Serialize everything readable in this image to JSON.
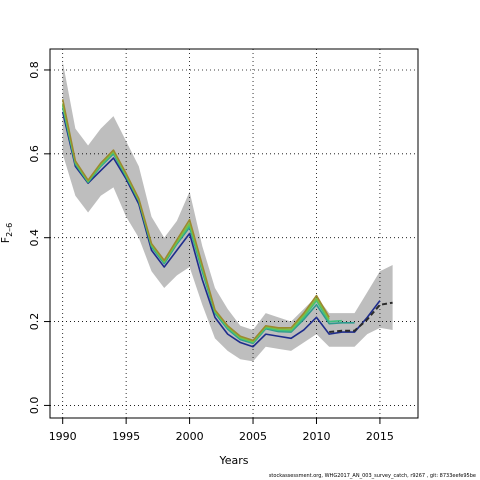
{
  "chart_data": {
    "type": "line",
    "title": "",
    "xlabel": "Years",
    "ylabel": "F",
    "ylabel_subscript": "2–6",
    "xlim": [
      1989,
      2018
    ],
    "ylim": [
      -0.03,
      0.85
    ],
    "x_ticks": [
      1990,
      1995,
      2000,
      2005,
      2010,
      2015
    ],
    "y_ticks": [
      0.0,
      0.2,
      0.4,
      0.6,
      0.8
    ],
    "y_tick_labels": [
      "0.0",
      "0.2",
      "0.4",
      "0.6",
      "0.8"
    ],
    "grid": "dotted",
    "band": {
      "color": "#bebebe",
      "x": [
        1990,
        1991,
        1992,
        1993,
        1994,
        1995,
        1996,
        1997,
        1998,
        1999,
        2000,
        2001,
        2002,
        2003,
        2004,
        2005,
        2006,
        2007,
        2008,
        2009,
        2010,
        2011,
        2012,
        2013,
        2014,
        2015,
        2016
      ],
      "upper": [
        0.82,
        0.66,
        0.62,
        0.66,
        0.69,
        0.63,
        0.57,
        0.45,
        0.4,
        0.44,
        0.51,
        0.38,
        0.28,
        0.23,
        0.19,
        0.18,
        0.22,
        0.21,
        0.2,
        0.23,
        0.26,
        0.22,
        0.22,
        0.22,
        0.27,
        0.32,
        0.335
      ],
      "lower": [
        0.6,
        0.5,
        0.46,
        0.5,
        0.52,
        0.45,
        0.4,
        0.32,
        0.28,
        0.31,
        0.33,
        0.24,
        0.16,
        0.13,
        0.11,
        0.105,
        0.14,
        0.135,
        0.13,
        0.15,
        0.17,
        0.14,
        0.14,
        0.14,
        0.17,
        0.185,
        0.18
      ]
    },
    "series": [
      {
        "color": "#1e2c8c",
        "x": [
          1990,
          1991,
          1992,
          1993,
          1994,
          1995,
          1996,
          1997,
          1998,
          1999,
          2000,
          2001,
          2002,
          2003,
          2004,
          2005,
          2006,
          2007,
          2008,
          2009,
          2010,
          2011,
          2012,
          2013,
          2014,
          2015
        ],
        "values": [
          0.7,
          0.57,
          0.53,
          0.56,
          0.59,
          0.54,
          0.48,
          0.37,
          0.33,
          0.37,
          0.41,
          0.3,
          0.21,
          0.17,
          0.15,
          0.14,
          0.17,
          0.165,
          0.16,
          0.18,
          0.21,
          0.17,
          0.175,
          0.175,
          0.21,
          0.25
        ]
      },
      {
        "color": "#2e9a8e",
        "x": [
          1990,
          1991,
          1992,
          1993,
          1994,
          1995,
          1996,
          1997,
          1998,
          1999,
          2000,
          2001,
          2002,
          2003,
          2004,
          2005,
          2006,
          2007,
          2008,
          2009,
          2010,
          2011,
          2012,
          2013
        ],
        "values": [
          0.71,
          0.575,
          0.532,
          0.57,
          0.6,
          0.545,
          0.487,
          0.378,
          0.338,
          0.385,
          0.425,
          0.32,
          0.22,
          0.182,
          0.157,
          0.148,
          0.183,
          0.176,
          0.175,
          0.205,
          0.24,
          0.195,
          0.197,
          0.197
        ]
      },
      {
        "color": "#3fbf7f",
        "x": [
          1990,
          1991,
          1992,
          1993,
          1994,
          1995,
          1996,
          1997,
          1998,
          1999,
          2000,
          2001,
          2002,
          2003,
          2004,
          2005,
          2006,
          2007,
          2008,
          2009,
          2010,
          2011,
          2012
        ],
        "values": [
          0.715,
          0.578,
          0.533,
          0.572,
          0.603,
          0.548,
          0.489,
          0.381,
          0.341,
          0.388,
          0.43,
          0.325,
          0.223,
          0.185,
          0.16,
          0.15,
          0.185,
          0.179,
          0.178,
          0.21,
          0.25,
          0.2,
          0.202
        ]
      },
      {
        "color": "#7ac043",
        "x": [
          1990,
          1991,
          1992,
          1993,
          1994,
          1995,
          1996,
          1997,
          1998,
          1999,
          2000,
          2001,
          2002,
          2003,
          2004,
          2005,
          2006,
          2007,
          2008,
          2009,
          2010,
          2011
        ],
        "values": [
          0.72,
          0.58,
          0.535,
          0.575,
          0.605,
          0.55,
          0.49,
          0.383,
          0.343,
          0.39,
          0.435,
          0.33,
          0.225,
          0.188,
          0.162,
          0.152,
          0.188,
          0.182,
          0.181,
          0.215,
          0.255,
          0.205
        ]
      },
      {
        "color": "#9c8a2e",
        "x": [
          1990,
          1991,
          1992,
          1993,
          1994,
          1995,
          1996,
          1997,
          1998,
          1999,
          2000,
          2001,
          2002,
          2003,
          2004,
          2005,
          2006,
          2007,
          2008,
          2009,
          2010,
          2011
        ],
        "values": [
          0.73,
          0.583,
          0.537,
          0.578,
          0.609,
          0.553,
          0.493,
          0.386,
          0.346,
          0.395,
          0.443,
          0.335,
          0.228,
          0.19,
          0.165,
          0.155,
          0.19,
          0.185,
          0.185,
          0.22,
          0.262,
          0.21
        ]
      },
      {
        "color": "#2a2a2a",
        "dashed": true,
        "x": [
          2011,
          2012,
          2013,
          2014,
          2015,
          2016
        ],
        "values": [
          0.175,
          0.178,
          0.178,
          0.205,
          0.24,
          0.245
        ]
      }
    ]
  },
  "footer_text": "stockassessment.org, WHG2017_AN_003_survey_catch, r9267 , git: 8733eefe95be"
}
